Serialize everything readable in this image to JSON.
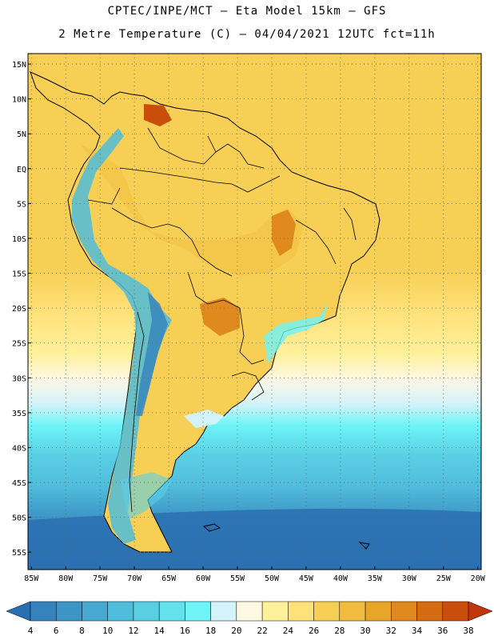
{
  "header": {
    "line1": "CPTEC/INPE/MCT –  Eta Model 15km – GFS",
    "line2": "2 Metre Temperature (C) – 04/04/2021 12UTC fct=11h"
  },
  "map": {
    "lat_labels": [
      "15N",
      "10N",
      "5N",
      "EQ",
      "5S",
      "10S",
      "15S",
      "20S",
      "25S",
      "30S",
      "35S",
      "40S",
      "45S",
      "50S",
      "55S"
    ],
    "lat_values": [
      15,
      10,
      5,
      0,
      -5,
      -10,
      -15,
      -20,
      -25,
      -30,
      -35,
      -40,
      -45,
      -50,
      -55
    ],
    "lon_labels": [
      "85W",
      "80W",
      "75W",
      "70W",
      "65W",
      "60W",
      "55W",
      "50W",
      "45W",
      "40W",
      "35W",
      "30W",
      "25W",
      "20W"
    ],
    "lon_values": [
      -85,
      -80,
      -75,
      -70,
      -65,
      -60,
      -55,
      -50,
      -45,
      -40,
      -35,
      -30,
      -25,
      -20
    ],
    "extent": {
      "lon_min": -85.5,
      "lon_max": -19.5,
      "lat_min": -57.5,
      "lat_max": 16.5
    }
  },
  "colorbar": {
    "ticks": [
      "4",
      "6",
      "8",
      "10",
      "12",
      "14",
      "16",
      "18",
      "20",
      "22",
      "24",
      "26",
      "28",
      "30",
      "32",
      "34",
      "36",
      "38"
    ],
    "colors": [
      "#2a6fb0",
      "#3583bc",
      "#3d95c6",
      "#47a8d0",
      "#50bcdb",
      "#5acfe4",
      "#63e2ee",
      "#6ef4f7",
      "#d2f3fa",
      "#fff8e3",
      "#fff09a",
      "#ffe179",
      "#f7cf55",
      "#f0bb3e",
      "#e9a42a",
      "#e08a1e",
      "#d46a12",
      "#c94e0c",
      "#bf360a"
    ]
  }
}
